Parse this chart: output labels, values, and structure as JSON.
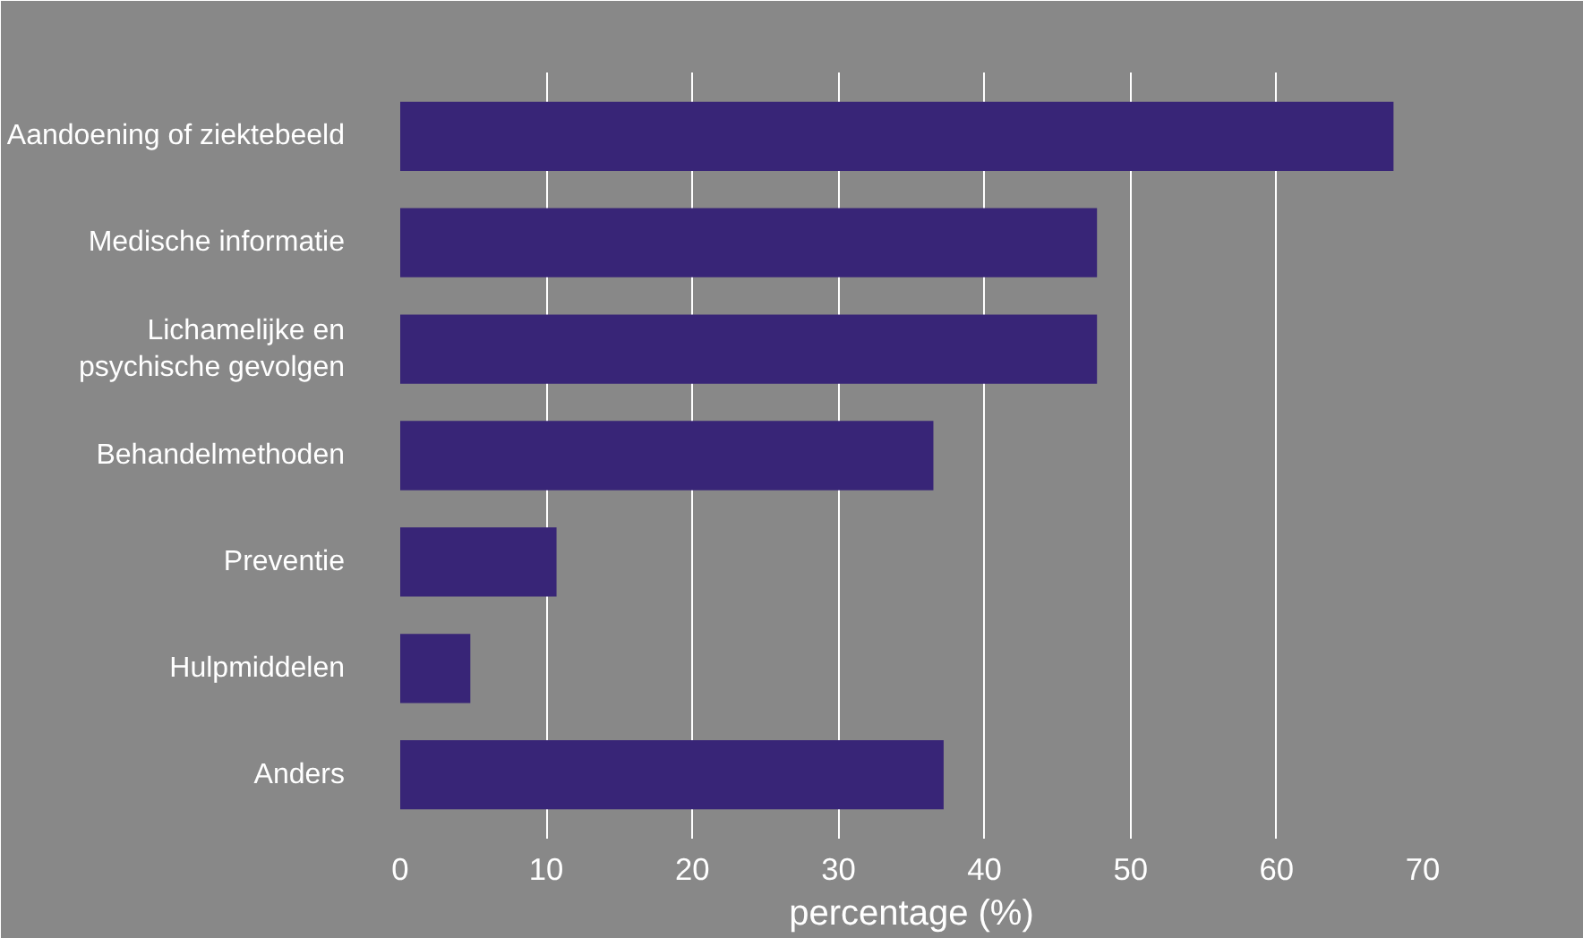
{
  "chart_data": {
    "type": "bar",
    "orientation": "horizontal",
    "xlabel": "percentage (%)",
    "categories": [
      "Aandoening of ziektebeeld",
      "Medische informatie",
      "Lichamelijke en\npsychische gevolgen",
      "Behandelmethoden",
      "Preventie",
      "Hulpmiddelen",
      "Anders"
    ],
    "values": [
      68,
      47.7,
      47.7,
      36.5,
      10.7,
      4.8,
      37.2
    ],
    "color": "#382577",
    "xlim": [
      0,
      70
    ],
    "xticks": [
      0,
      10,
      20,
      30,
      40,
      50,
      60,
      70
    ],
    "grid": "x"
  }
}
